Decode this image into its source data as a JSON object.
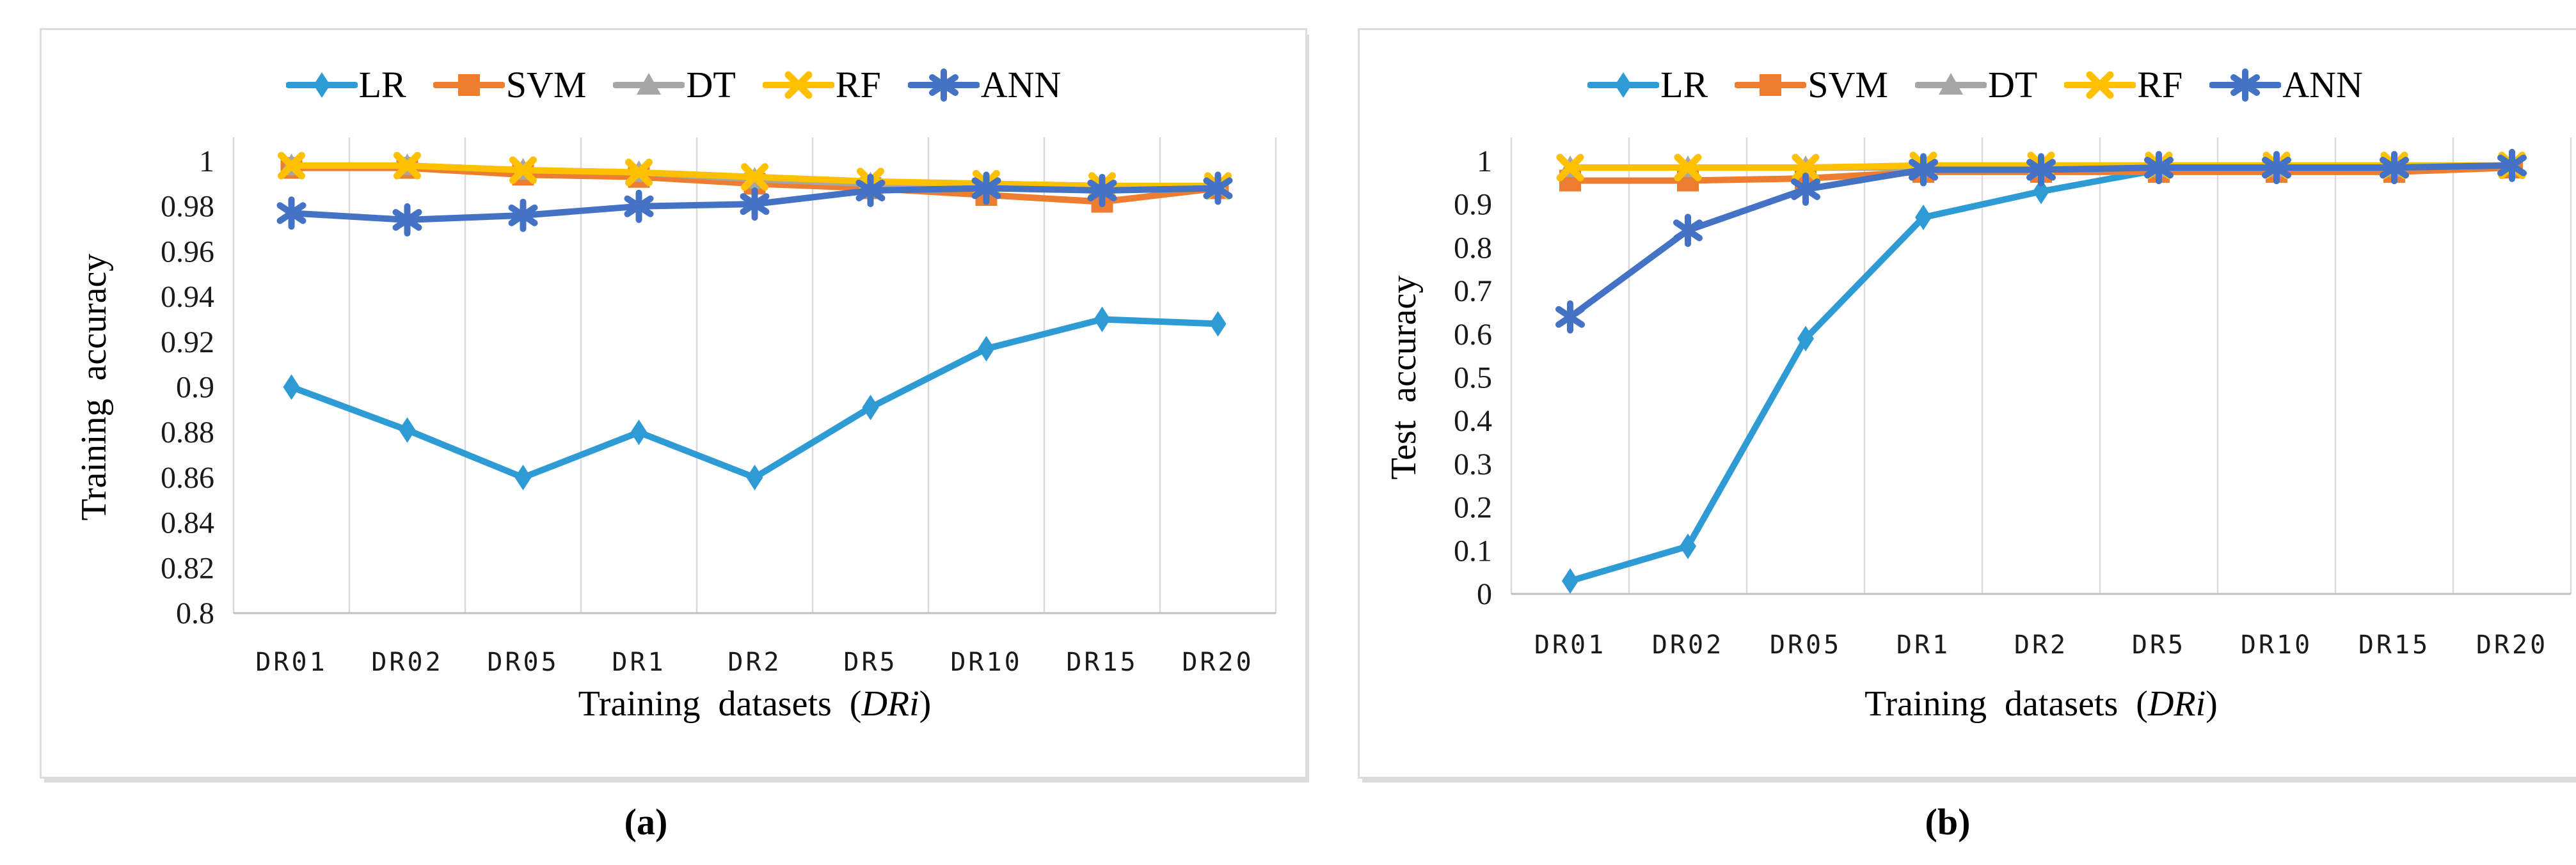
{
  "figure": {
    "captions": {
      "a": "(a)",
      "b": "(b)"
    }
  },
  "chart_data": [
    {
      "id": "a",
      "type": "line",
      "title": "",
      "ylabel": "Training accuracy",
      "xlabel_parts": {
        "prefix": "Training datasets (",
        "italic": "DRi",
        "suffix": ")"
      },
      "categories": [
        "DR01",
        "DR02",
        "DR05",
        "DR1",
        "DR2",
        "DR5",
        "DR10",
        "DR15",
        "DR20"
      ],
      "ylim": [
        0.8,
        1.0
      ],
      "ytick_values": [
        1,
        0.98,
        0.96,
        0.94,
        0.92,
        0.9,
        0.88,
        0.86,
        0.84,
        0.82,
        0.8
      ],
      "ytick_labels": [
        "1",
        "0.98",
        "0.96",
        "0.94",
        "0.92",
        "0.9",
        "0.88",
        "0.86",
        "0.84",
        "0.82",
        "0.8"
      ],
      "grid": "vertical",
      "legend_position": "top",
      "series": [
        {
          "name": "LR",
          "marker": "diamond",
          "color": "#2E9BD5",
          "values": [
            0.9,
            0.881,
            0.86,
            0.88,
            0.86,
            0.891,
            0.917,
            0.93,
            0.928
          ]
        },
        {
          "name": "SVM",
          "marker": "square",
          "color": "#ED7D31",
          "values": [
            0.997,
            0.997,
            0.994,
            0.993,
            0.99,
            0.988,
            0.985,
            0.982,
            0.988
          ]
        },
        {
          "name": "DT",
          "marker": "triangle",
          "color": "#A6A6A6",
          "values": [
            0.998,
            0.998,
            0.996,
            0.995,
            0.992,
            0.99,
            0.99,
            0.989,
            0.989
          ]
        },
        {
          "name": "RF",
          "marker": "xcross",
          "color": "#FFC000",
          "values": [
            0.998,
            0.998,
            0.996,
            0.995,
            0.993,
            0.991,
            0.99,
            0.989,
            0.989
          ]
        },
        {
          "name": "ANN",
          "marker": "asterisk",
          "color": "#4472C4",
          "values": [
            0.977,
            0.974,
            0.976,
            0.98,
            0.981,
            0.987,
            0.988,
            0.987,
            0.988
          ]
        }
      ]
    },
    {
      "id": "b",
      "type": "line",
      "title": "",
      "ylabel": "Test accuracy",
      "xlabel_parts": {
        "prefix": "Training datasets (",
        "italic": "DRi",
        "suffix": ")"
      },
      "categories": [
        "DR01",
        "DR02",
        "DR05",
        "DR1",
        "DR2",
        "DR5",
        "DR10",
        "DR15",
        "DR20"
      ],
      "ylim": [
        0,
        1.0
      ],
      "ytick_values": [
        1,
        0.9,
        0.8,
        0.7,
        0.6,
        0.5,
        0.4,
        0.3,
        0.2,
        0.1,
        0
      ],
      "ytick_labels": [
        "1",
        "0.9",
        "0.8",
        "0.7",
        "0.6",
        "0.5",
        "0.4",
        "0.3",
        "0.2",
        "0.1",
        "0"
      ],
      "grid": "vertical",
      "legend_position": "top",
      "series": [
        {
          "name": "LR",
          "marker": "diamond",
          "color": "#2E9BD5",
          "values": [
            0.03,
            0.11,
            0.59,
            0.87,
            0.93,
            0.98,
            0.98,
            0.98,
            0.99
          ]
        },
        {
          "name": "SVM",
          "marker": "square",
          "color": "#ED7D31",
          "values": [
            0.955,
            0.955,
            0.96,
            0.975,
            0.975,
            0.975,
            0.975,
            0.975,
            0.985
          ]
        },
        {
          "name": "DT",
          "marker": "triangle",
          "color": "#A6A6A6",
          "values": [
            0.985,
            0.985,
            0.985,
            0.985,
            0.985,
            0.985,
            0.985,
            0.985,
            0.99
          ]
        },
        {
          "name": "RF",
          "marker": "xcross",
          "color": "#FFC000",
          "values": [
            0.985,
            0.985,
            0.985,
            0.99,
            0.99,
            0.99,
            0.99,
            0.99,
            0.99
          ]
        },
        {
          "name": "ANN",
          "marker": "asterisk",
          "color": "#4472C4",
          "values": [
            0.64,
            0.84,
            0.935,
            0.98,
            0.98,
            0.985,
            0.985,
            0.985,
            0.99
          ]
        }
      ]
    }
  ],
  "colors": {
    "gridline": "#D9D9D9",
    "axis_line": "#BFBFBF",
    "panel_border": "#DCDCDC",
    "text": "#000000"
  }
}
